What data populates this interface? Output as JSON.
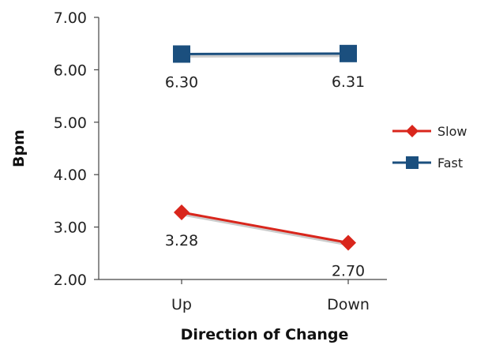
{
  "chart_data": {
    "type": "line",
    "title": "",
    "xlabel": "Direction of Change",
    "ylabel": "Bpm",
    "categories": [
      "Up",
      "Down"
    ],
    "ylim": [
      2.0,
      7.0
    ],
    "yticks": [
      "7.00",
      "6.00",
      "5.00",
      "4.00",
      "3.00",
      "2.00"
    ],
    "grid": false,
    "legend_position": "right",
    "series": [
      {
        "name": "Slow",
        "values": [
          3.28,
          2.7
        ],
        "labels": [
          "3.28",
          "2.70"
        ],
        "color": "#d9261c",
        "marker": "diamond"
      },
      {
        "name": "Fast",
        "values": [
          6.3,
          6.31
        ],
        "labels": [
          "6.30",
          "6.31"
        ],
        "color": "#1b4f7e",
        "marker": "square"
      }
    ]
  }
}
